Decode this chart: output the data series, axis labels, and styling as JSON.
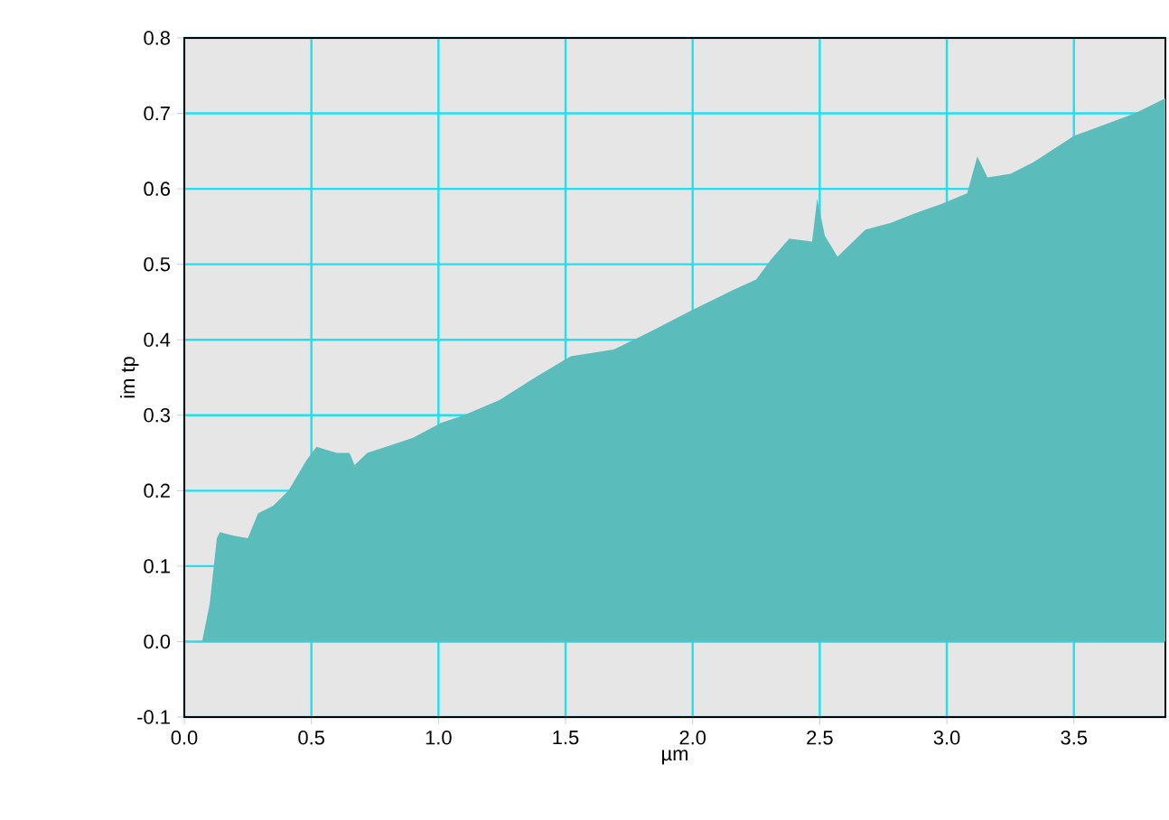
{
  "chart_data": {
    "type": "area",
    "xlabel": "µm",
    "ylabel": "im tp",
    "x": [
      0,
      0.07,
      0.1,
      0.128,
      0.14,
      0.2,
      0.25,
      0.29,
      0.35,
      0.41,
      0.48,
      0.52,
      0.6,
      0.65,
      0.67,
      0.72,
      0.81,
      0.9,
      1.01,
      1.1,
      1.24,
      1.38,
      1.52,
      1.69,
      1.83,
      1.99,
      2.16,
      2.25,
      2.31,
      2.38,
      2.47,
      2.49,
      2.52,
      2.57,
      2.68,
      2.78,
      2.87,
      2.98,
      3.08,
      3.12,
      3.16,
      3.25,
      3.34,
      3.5,
      3.58,
      3.74,
      3.86
    ],
    "series": [
      {
        "color": "#5bbcbc",
        "values": [
          0,
          0,
          0.05,
          0.137,
          0.145,
          0.14,
          0.137,
          0.17,
          0.18,
          0.2,
          0.24,
          0.258,
          0.25,
          0.25,
          0.234,
          0.25,
          0.26,
          0.27,
          0.29,
          0.3,
          0.32,
          0.35,
          0.378,
          0.387,
          0.41,
          0.438,
          0.466,
          0.48,
          0.507,
          0.534,
          0.53,
          0.587,
          0.538,
          0.51,
          0.546,
          0.555,
          0.567,
          0.58,
          0.594,
          0.643,
          0.615,
          0.62,
          0.635,
          0.67,
          0.68,
          0.7,
          0.72
        ]
      }
    ],
    "xlim": [
      0,
      3.86
    ],
    "ylim": [
      -0.1,
      0.8
    ],
    "xticks": [
      {
        "value": 0,
        "label": "0.0"
      },
      0.5,
      {
        "value": 1,
        "label": "1.0"
      },
      1.5,
      {
        "value": 2,
        "label": "2.0"
      },
      2.5,
      {
        "value": 3,
        "label": "3.0"
      },
      3.5
    ],
    "yticks": [
      -0.1,
      {
        "value": 0,
        "label": "0.0"
      },
      0.1,
      0.2,
      0.3,
      0.4,
      0.5,
      0.6,
      0.7,
      0.8
    ],
    "grid": true
  }
}
